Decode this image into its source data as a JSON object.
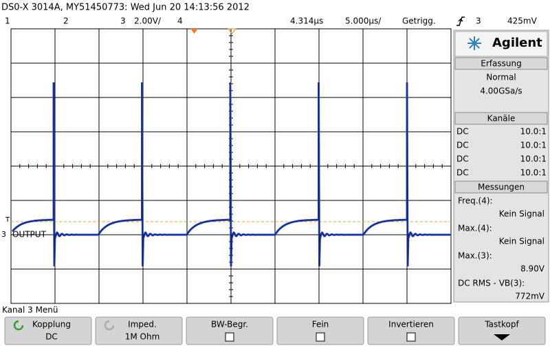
{
  "header": {
    "title": "DS0-X 3014A, MY51450773: Wed Jun 20 14:13:56 2012",
    "channels": [
      "1",
      "2",
      "3",
      "4"
    ],
    "scale": "2.00V/",
    "delay": "4.314µs",
    "timebase": "5.000µs/",
    "trigger_state": "Getrigg.",
    "trigger_source": "3",
    "trigger_level": "425mV"
  },
  "screen": {
    "trigger_marker": "T",
    "channel_marker": "3",
    "label": "OUTPUT"
  },
  "panel": {
    "brand": "Agilent",
    "acquisition": {
      "title": "Erfassung",
      "mode": "Normal",
      "rate": "4.00GSa/s"
    },
    "channels": {
      "title": "Kanäle",
      "rows": [
        [
          "DC",
          "10.0:1"
        ],
        [
          "DC",
          "10.0:1"
        ],
        [
          "DC",
          "10.0:1"
        ],
        [
          "DC",
          "10.0:1"
        ]
      ]
    },
    "measurements": {
      "title": "Messungen",
      "items": [
        {
          "label": "Freq.(4):",
          "value": "Kein Signal"
        },
        {
          "label": "Max.(4):",
          "value": "Kein Signal"
        },
        {
          "label": "Max.(3):",
          "value": "8.90V"
        },
        {
          "label": "DC RMS - VB(3):",
          "value": "772mV"
        }
      ]
    }
  },
  "menu": {
    "title": "Kanal 3 Menü",
    "softkeys": [
      {
        "label": "Kopplung",
        "value": "DC"
      },
      {
        "label": "Imped.",
        "value": "1M Ohm"
      },
      {
        "label": "BW-Begr."
      },
      {
        "label": "Fein"
      },
      {
        "label": "Invertieren"
      },
      {
        "label": "Tastkopf"
      }
    ]
  }
}
